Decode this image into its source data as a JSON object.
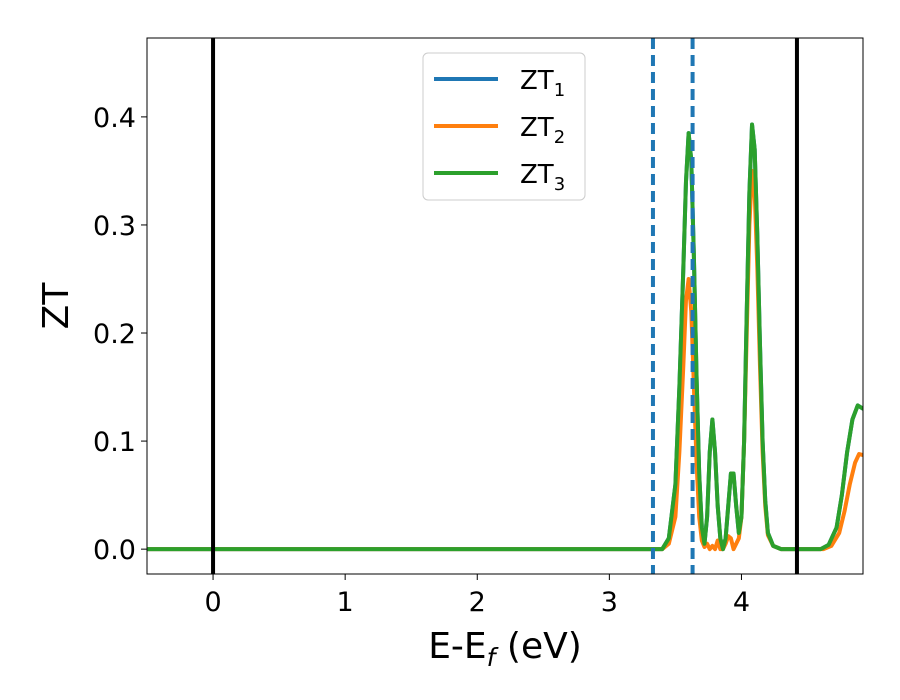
{
  "chart_data": {
    "type": "line",
    "xlabel": {
      "main": "E-E",
      "sub": "f",
      "suffix": " (eV)"
    },
    "ylabel": "ZT",
    "xlim": [
      -0.5,
      4.92
    ],
    "ylim": [
      -0.023,
      0.473
    ],
    "x_ticks": [
      0,
      1,
      2,
      3,
      4
    ],
    "x_tick_labels": [
      "0",
      "1",
      "2",
      "3",
      "4"
    ],
    "y_ticks": [
      0.0,
      0.1,
      0.2,
      0.3,
      0.4
    ],
    "y_tick_labels": [
      "0.0",
      "0.1",
      "0.2",
      "0.3",
      "0.4"
    ],
    "grid": false,
    "legend_position": "top-center",
    "vertical_lines": [
      {
        "x": 0.0,
        "style": "solid",
        "color": "#000000"
      },
      {
        "x": 3.33,
        "style": "dashed",
        "color": "#1f77b4"
      },
      {
        "x": 3.63,
        "style": "dashed",
        "color": "#1f77b4"
      },
      {
        "x": 4.42,
        "style": "solid",
        "color": "#000000"
      }
    ],
    "series": [
      {
        "name": "ZT",
        "sub": "1",
        "color": "#1f77b4",
        "points": [
          [
            -0.5,
            0
          ],
          [
            3.3,
            0
          ],
          [
            3.4,
            0
          ],
          [
            3.45,
            0.01
          ],
          [
            3.5,
            0.06
          ],
          [
            3.53,
            0.15
          ],
          [
            3.56,
            0.26
          ],
          [
            3.58,
            0.34
          ],
          [
            3.6,
            0.385
          ],
          [
            3.62,
            0.36
          ],
          [
            3.64,
            0.27
          ],
          [
            3.66,
            0.16
          ],
          [
            3.68,
            0.07
          ],
          [
            3.7,
            0.02
          ],
          [
            3.72,
            0.005
          ],
          [
            3.74,
            0.03
          ],
          [
            3.76,
            0.09
          ],
          [
            3.78,
            0.12
          ],
          [
            3.8,
            0.09
          ],
          [
            3.82,
            0.04
          ],
          [
            3.84,
            0.01
          ],
          [
            3.86,
            0.0
          ],
          [
            3.88,
            0.01
          ],
          [
            3.9,
            0.04
          ],
          [
            3.92,
            0.07
          ],
          [
            3.94,
            0.07
          ],
          [
            3.96,
            0.04
          ],
          [
            3.98,
            0.015
          ],
          [
            4.0,
            0.03
          ],
          [
            4.02,
            0.1
          ],
          [
            4.04,
            0.22
          ],
          [
            4.06,
            0.33
          ],
          [
            4.08,
            0.393
          ],
          [
            4.1,
            0.37
          ],
          [
            4.12,
            0.29
          ],
          [
            4.14,
            0.19
          ],
          [
            4.16,
            0.1
          ],
          [
            4.18,
            0.045
          ],
          [
            4.2,
            0.015
          ],
          [
            4.24,
            0.003
          ],
          [
            4.3,
            0
          ],
          [
            4.6,
            0
          ],
          [
            4.66,
            0.004
          ],
          [
            4.72,
            0.02
          ],
          [
            4.76,
            0.05
          ],
          [
            4.8,
            0.09
          ],
          [
            4.84,
            0.12
          ],
          [
            4.88,
            0.133
          ],
          [
            4.92,
            0.13
          ]
        ]
      },
      {
        "name": "ZT",
        "sub": "2",
        "color": "#ff7f0e",
        "points": [
          [
            -0.5,
            0
          ],
          [
            3.3,
            0
          ],
          [
            3.4,
            0
          ],
          [
            3.45,
            0.005
          ],
          [
            3.5,
            0.03
          ],
          [
            3.53,
            0.09
          ],
          [
            3.56,
            0.17
          ],
          [
            3.58,
            0.23
          ],
          [
            3.6,
            0.25
          ],
          [
            3.62,
            0.22
          ],
          [
            3.64,
            0.15
          ],
          [
            3.66,
            0.08
          ],
          [
            3.68,
            0.03
          ],
          [
            3.7,
            0.008
          ],
          [
            3.72,
            0.002
          ],
          [
            3.74,
            0.005
          ],
          [
            3.76,
            0.0
          ],
          [
            3.78,
            0.003
          ],
          [
            3.8,
            0.0
          ],
          [
            3.82,
            0.008
          ],
          [
            3.84,
            0.0
          ],
          [
            3.86,
            0.0
          ],
          [
            3.88,
            0.005
          ],
          [
            3.9,
            0.012
          ],
          [
            3.92,
            0.01
          ],
          [
            3.94,
            0.0
          ],
          [
            3.96,
            0.005
          ],
          [
            3.98,
            0.01
          ],
          [
            4.0,
            0.03
          ],
          [
            4.02,
            0.1
          ],
          [
            4.04,
            0.2
          ],
          [
            4.06,
            0.3
          ],
          [
            4.08,
            0.35
          ],
          [
            4.1,
            0.33
          ],
          [
            4.12,
            0.26
          ],
          [
            4.14,
            0.17
          ],
          [
            4.16,
            0.09
          ],
          [
            4.18,
            0.04
          ],
          [
            4.2,
            0.013
          ],
          [
            4.24,
            0.003
          ],
          [
            4.3,
            0
          ],
          [
            4.62,
            0
          ],
          [
            4.68,
            0.003
          ],
          [
            4.74,
            0.015
          ],
          [
            4.78,
            0.035
          ],
          [
            4.82,
            0.06
          ],
          [
            4.86,
            0.08
          ],
          [
            4.89,
            0.088
          ],
          [
            4.92,
            0.087
          ]
        ]
      },
      {
        "name": "ZT",
        "sub": "3",
        "color": "#2ca02c",
        "points": [
          [
            -0.5,
            0
          ],
          [
            3.3,
            0
          ],
          [
            3.4,
            0
          ],
          [
            3.45,
            0.01
          ],
          [
            3.5,
            0.06
          ],
          [
            3.53,
            0.15
          ],
          [
            3.56,
            0.26
          ],
          [
            3.58,
            0.34
          ],
          [
            3.6,
            0.385
          ],
          [
            3.62,
            0.36
          ],
          [
            3.64,
            0.27
          ],
          [
            3.66,
            0.16
          ],
          [
            3.68,
            0.07
          ],
          [
            3.7,
            0.02
          ],
          [
            3.72,
            0.005
          ],
          [
            3.74,
            0.03
          ],
          [
            3.76,
            0.09
          ],
          [
            3.78,
            0.12
          ],
          [
            3.8,
            0.09
          ],
          [
            3.82,
            0.04
          ],
          [
            3.84,
            0.01
          ],
          [
            3.86,
            0.0
          ],
          [
            3.88,
            0.01
          ],
          [
            3.9,
            0.04
          ],
          [
            3.92,
            0.07
          ],
          [
            3.94,
            0.07
          ],
          [
            3.96,
            0.04
          ],
          [
            3.98,
            0.015
          ],
          [
            4.0,
            0.03
          ],
          [
            4.02,
            0.1
          ],
          [
            4.04,
            0.22
          ],
          [
            4.06,
            0.33
          ],
          [
            4.08,
            0.393
          ],
          [
            4.1,
            0.37
          ],
          [
            4.12,
            0.29
          ],
          [
            4.14,
            0.19
          ],
          [
            4.16,
            0.1
          ],
          [
            4.18,
            0.045
          ],
          [
            4.2,
            0.015
          ],
          [
            4.24,
            0.003
          ],
          [
            4.3,
            0
          ],
          [
            4.6,
            0
          ],
          [
            4.66,
            0.004
          ],
          [
            4.72,
            0.02
          ],
          [
            4.76,
            0.05
          ],
          [
            4.8,
            0.09
          ],
          [
            4.84,
            0.12
          ],
          [
            4.88,
            0.133
          ],
          [
            4.92,
            0.13
          ]
        ]
      }
    ]
  }
}
